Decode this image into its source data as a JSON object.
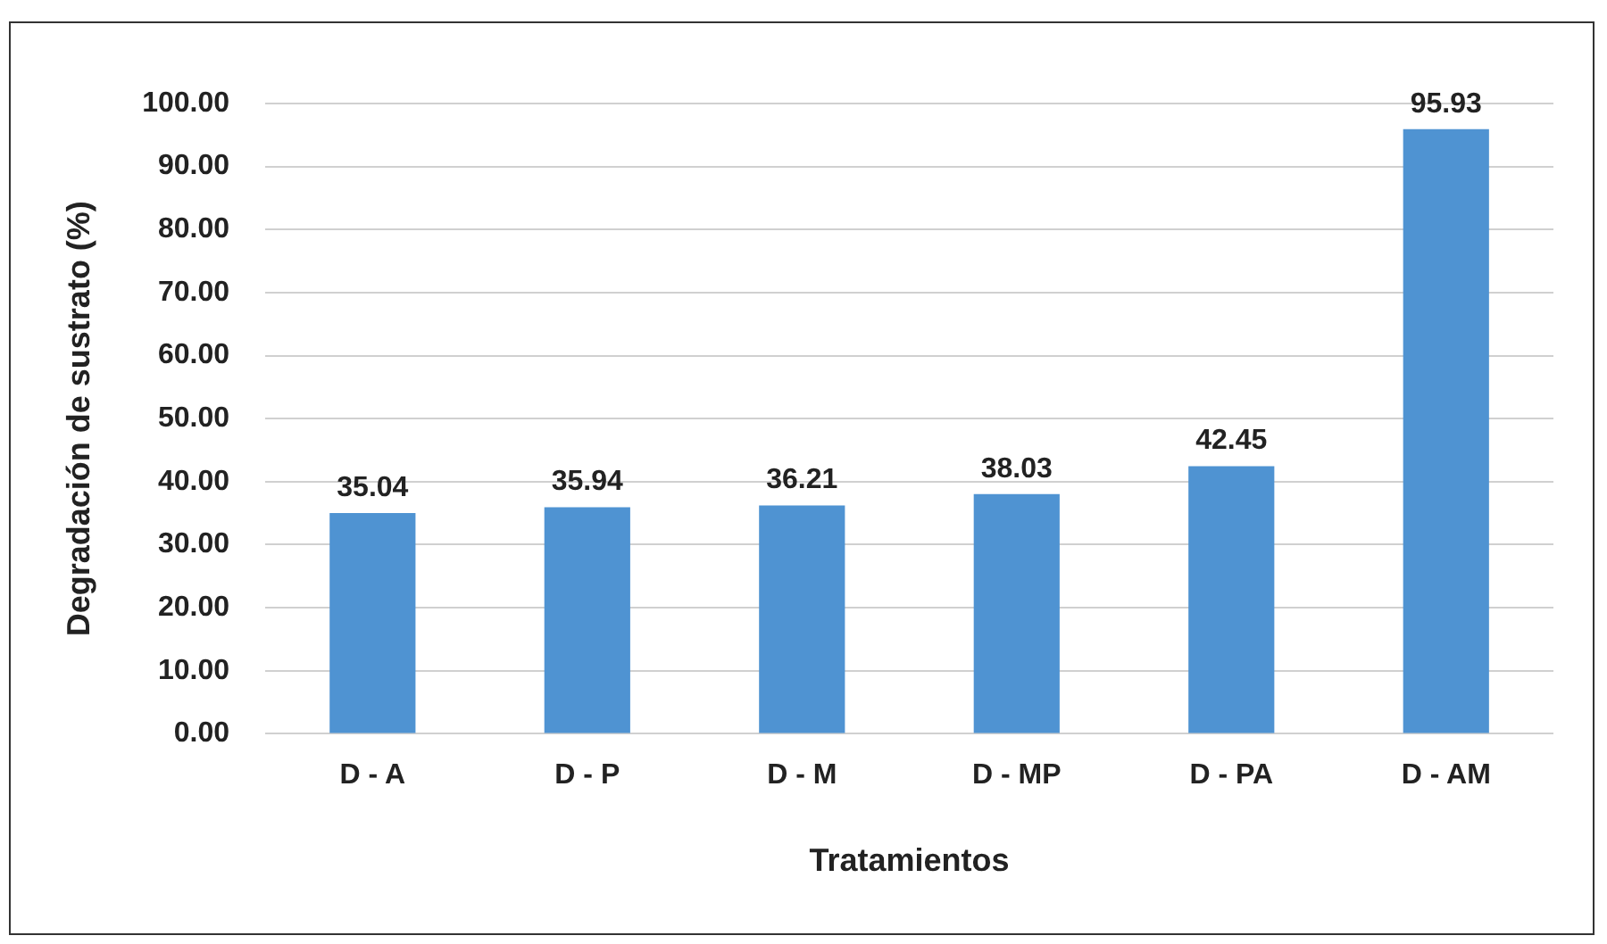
{
  "chart_data": {
    "type": "bar",
    "xlabel": "Tratamientos",
    "ylabel": "Degradación de sustrato (%)",
    "categories": [
      "D - A",
      "D - P",
      "D - M",
      "D - MP",
      "D - PA",
      "D - AM"
    ],
    "values": [
      35.04,
      35.94,
      36.21,
      38.03,
      42.45,
      95.93
    ],
    "color": "#4f93d2",
    "ylim": [
      0,
      100
    ],
    "yticks": [
      {
        "value": 0,
        "label": "0.00"
      },
      {
        "value": 10,
        "label": "10.00"
      },
      {
        "value": 20,
        "label": "20.00"
      },
      {
        "value": 30,
        "label": "30.00"
      },
      {
        "value": 40,
        "label": "40.00"
      },
      {
        "value": 50,
        "label": "50.00"
      },
      {
        "value": 60,
        "label": "60.00"
      },
      {
        "value": 70,
        "label": "70.00"
      },
      {
        "value": 80,
        "label": "80.00"
      },
      {
        "value": 90,
        "label": "90.00"
      },
      {
        "value": 100,
        "label": "100.00"
      }
    ],
    "grid": "y",
    "data_labels": true
  }
}
